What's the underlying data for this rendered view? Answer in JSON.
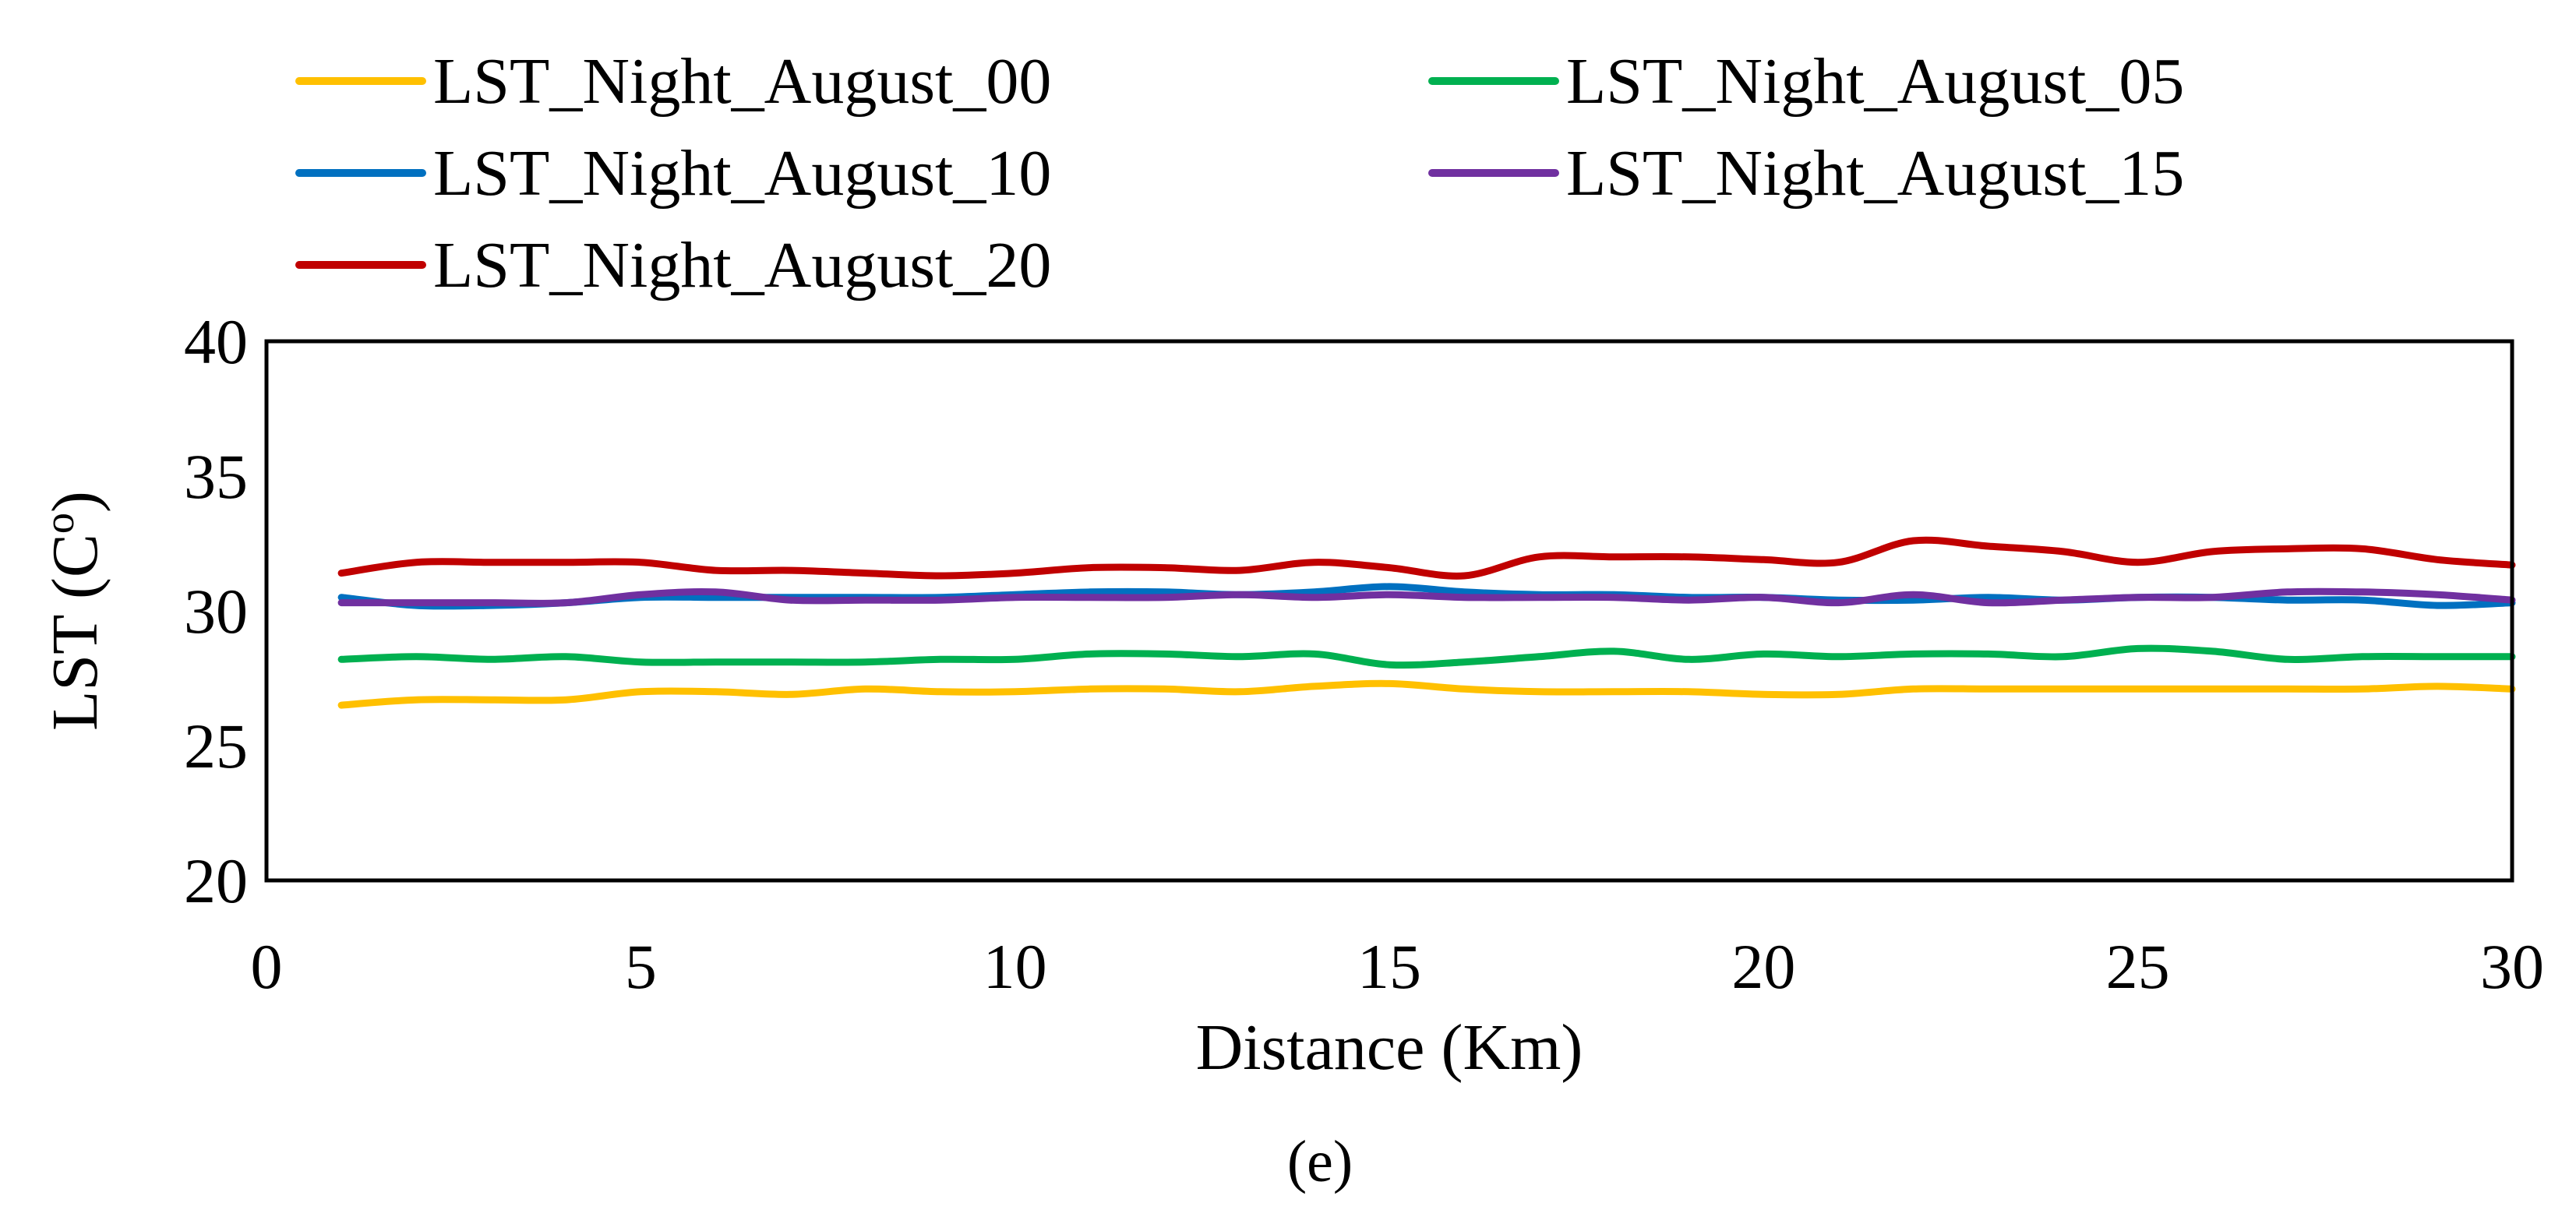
{
  "chart_data": {
    "type": "line",
    "title": "",
    "xlabel": "Distance (Km)",
    "ylabel_main": "LST (C",
    "ylabel_super": "o",
    "ylabel_close": ")",
    "xlim": [
      0,
      30
    ],
    "ylim": [
      20,
      40
    ],
    "xticks": [
      0,
      5,
      10,
      15,
      20,
      25,
      30
    ],
    "yticks": [
      20,
      25,
      30,
      35,
      40
    ],
    "grid": false,
    "legend_position": "top",
    "panel_label": "(e)",
    "x": [
      1,
      2,
      3,
      4,
      5,
      6,
      7,
      8,
      9,
      10,
      11,
      12,
      13,
      14,
      15,
      16,
      17,
      18,
      19,
      20,
      21,
      22,
      23,
      24,
      25,
      26,
      27,
      28,
      29,
      30
    ],
    "series": [
      {
        "name": "LST_Night_August_00",
        "color": "#FFC000",
        "values": [
          26.5,
          26.7,
          26.7,
          26.7,
          27.0,
          27.0,
          26.9,
          27.1,
          27.0,
          27.0,
          27.1,
          27.1,
          27.0,
          27.2,
          27.3,
          27.1,
          27.0,
          27.0,
          27.0,
          26.9,
          26.9,
          27.1,
          27.1,
          27.1,
          27.1,
          27.1,
          27.1,
          27.1,
          27.2,
          27.1
        ]
      },
      {
        "name": "LST_Night_August_05",
        "color": "#00B050",
        "values": [
          28.2,
          28.3,
          28.2,
          28.3,
          28.1,
          28.1,
          28.1,
          28.1,
          28.2,
          28.2,
          28.4,
          28.4,
          28.3,
          28.4,
          28.0,
          28.1,
          28.3,
          28.5,
          28.2,
          28.4,
          28.3,
          28.4,
          28.4,
          28.3,
          28.6,
          28.5,
          28.2,
          28.3,
          28.3,
          28.3
        ]
      },
      {
        "name": "LST_Night_August_10",
        "color": "#0070C0",
        "values": [
          30.5,
          30.2,
          30.2,
          30.3,
          30.5,
          30.5,
          30.5,
          30.5,
          30.5,
          30.6,
          30.7,
          30.7,
          30.6,
          30.7,
          30.9,
          30.7,
          30.6,
          30.6,
          30.5,
          30.5,
          30.4,
          30.4,
          30.5,
          30.4,
          30.5,
          30.5,
          30.4,
          30.4,
          30.2,
          30.3
        ]
      },
      {
        "name": "LST_Night_August_15",
        "color": "#7030A0",
        "values": [
          30.3,
          30.3,
          30.3,
          30.3,
          30.6,
          30.7,
          30.4,
          30.4,
          30.4,
          30.5,
          30.5,
          30.5,
          30.6,
          30.5,
          30.6,
          30.5,
          30.5,
          30.5,
          30.4,
          30.5,
          30.3,
          30.6,
          30.3,
          30.4,
          30.5,
          30.5,
          30.7,
          30.7,
          30.6,
          30.4
        ]
      },
      {
        "name": "LST_Night_August_20",
        "color": "#C00000",
        "values": [
          31.4,
          31.8,
          31.8,
          31.8,
          31.8,
          31.5,
          31.5,
          31.4,
          31.3,
          31.4,
          31.6,
          31.6,
          31.5,
          31.8,
          31.6,
          31.3,
          32.0,
          32.0,
          32.0,
          31.9,
          31.8,
          32.6,
          32.4,
          32.2,
          31.8,
          32.2,
          32.3,
          32.3,
          31.9,
          31.7
        ]
      }
    ]
  }
}
